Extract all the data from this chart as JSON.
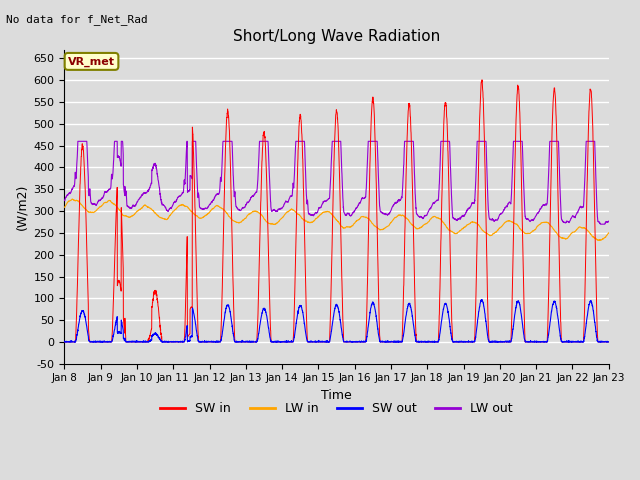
{
  "title": "Short/Long Wave Radiation",
  "xlabel": "Time",
  "ylabel": "(W/m2)",
  "ylim": [
    -50,
    670
  ],
  "yticks": [
    -50,
    0,
    50,
    100,
    150,
    200,
    250,
    300,
    350,
    400,
    450,
    500,
    550,
    600,
    650
  ],
  "background_color": "#dcdcdc",
  "plot_bg_color": "#dcdcdc",
  "grid_color": "#ffffff",
  "no_data_text": "No data for f_Net_Rad",
  "station_label": "VR_met",
  "colors": {
    "SW_in": "#ff0000",
    "LW_in": "#ffa500",
    "SW_out": "#0000ff",
    "LW_out": "#9400d3"
  },
  "legend_labels": [
    "SW in",
    "LW in",
    "SW out",
    "LW out"
  ],
  "start_day": 8,
  "end_day": 23,
  "n_points": 3600
}
